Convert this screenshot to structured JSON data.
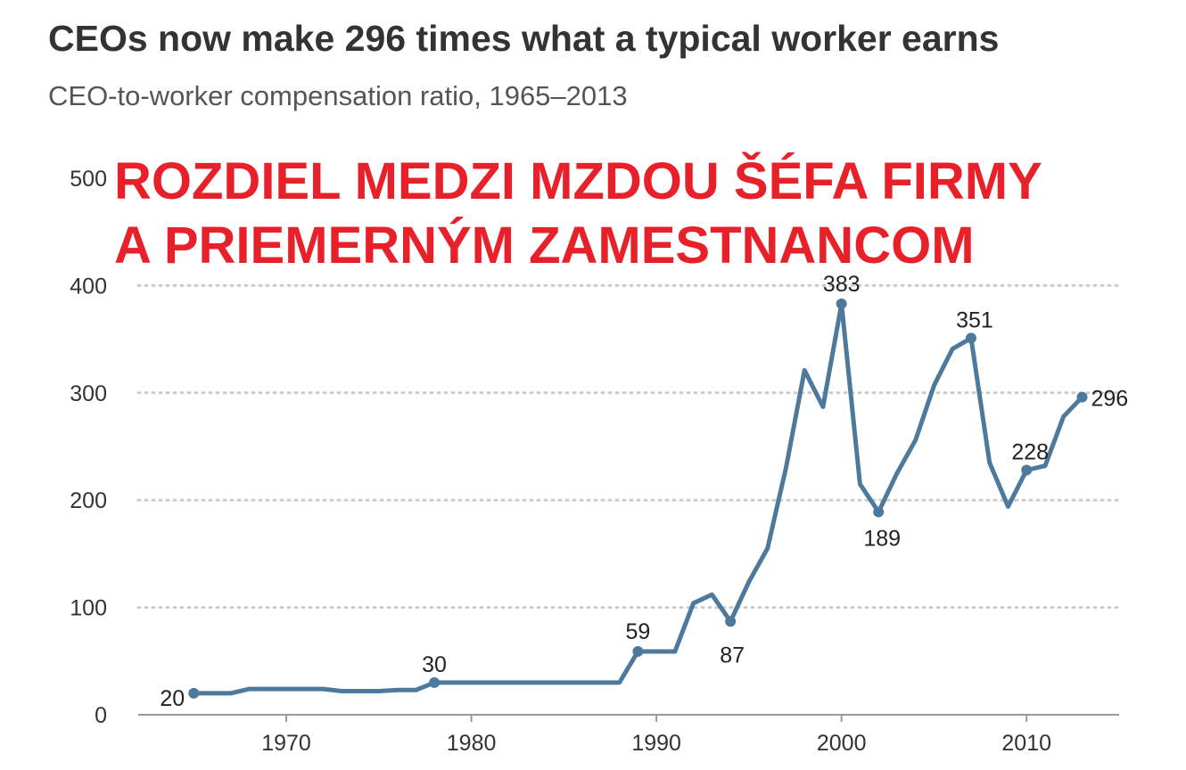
{
  "header": {
    "title": "CEOs now make 296 times what a typical worker earns",
    "subtitle": "CEO-to-worker compensation ratio, 1965–2013"
  },
  "overlay": {
    "line1": "ROZDIEL MEDZI MZDOU ŠÉFA FIRMY",
    "line2": "A PRIEMERNÝ M ZAMESTNANCOM"
  },
  "colors": {
    "line": "#4d7a9c",
    "grid": "#cccccc",
    "overlay_text": "#e8202a"
  },
  "chart_data": {
    "type": "line",
    "title": "CEOs now make 296 times what a typical worker earns",
    "subtitle": "CEO-to-worker compensation ratio, 1965–2013",
    "xlabel": "",
    "ylabel": "",
    "xlim": [
      1962,
      2015
    ],
    "ylim": [
      0,
      500
    ],
    "y_ticks": [
      0,
      100,
      200,
      300,
      400,
      500
    ],
    "x_ticks": [
      1970,
      1980,
      1990,
      2000,
      2010
    ],
    "grid": "horizontal-dotted",
    "series": [
      {
        "x": [
          1965,
          1966,
          1967,
          1968,
          1969,
          1970,
          1971,
          1972,
          1973,
          1974,
          1975,
          1976,
          1977,
          1978,
          1979,
          1980,
          1981,
          1982,
          1983,
          1984,
          1985,
          1986,
          1987,
          1988,
          1989,
          1990,
          1991,
          1992,
          1993,
          1994,
          1995,
          1996,
          1997,
          1998,
          1999,
          2000,
          2001,
          2002,
          2003,
          2004,
          2005,
          2006,
          2007,
          2008,
          2009,
          2010,
          2011,
          2012,
          2013
        ],
        "values": [
          20,
          20,
          20,
          24,
          24,
          24,
          24,
          24,
          22,
          22,
          22,
          23,
          23,
          30,
          30,
          30,
          30,
          30,
          30,
          30,
          30,
          30,
          30,
          30,
          59,
          59,
          59,
          104,
          112,
          87,
          124,
          155,
          230,
          321,
          287,
          383,
          215,
          189,
          225,
          256,
          307,
          341,
          351,
          235,
          194,
          228,
          232,
          278,
          296
        ]
      }
    ],
    "annotations": [
      {
        "x": 1965,
        "y": 20,
        "text": "20"
      },
      {
        "x": 1978,
        "y": 30,
        "text": "30"
      },
      {
        "x": 1989,
        "y": 59,
        "text": "59"
      },
      {
        "x": 1994,
        "y": 87,
        "text": "87"
      },
      {
        "x": 2000,
        "y": 383,
        "text": "383"
      },
      {
        "x": 2002,
        "y": 189,
        "text": "189"
      },
      {
        "x": 2007,
        "y": 351,
        "text": "351"
      },
      {
        "x": 2010,
        "y": 228,
        "text": "228"
      },
      {
        "x": 2013,
        "y": 296,
        "text": "296"
      }
    ]
  }
}
